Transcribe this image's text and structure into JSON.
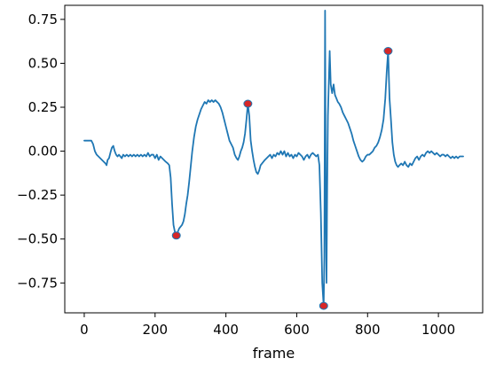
{
  "chart_data": {
    "type": "line",
    "title": "",
    "xlabel": "frame",
    "ylabel": "",
    "xlim": [
      -55,
      1125
    ],
    "ylim": [
      -0.92,
      0.83
    ],
    "x_ticks": [
      0,
      200,
      400,
      600,
      800,
      1000
    ],
    "x_tick_labels": [
      "0",
      "200",
      "400",
      "600",
      "800",
      "1000"
    ],
    "y_ticks": [
      0.75,
      0.5,
      0.25,
      0.0,
      -0.25,
      -0.5,
      -0.75
    ],
    "y_tick_labels": [
      "0.75",
      "0.50",
      "0.25",
      "0.00",
      "−0.25",
      "−0.50",
      "−0.75"
    ],
    "grid": false,
    "legend": "none",
    "series": [
      {
        "color": "#1f77b4",
        "points": [
          [
            0,
            0.06
          ],
          [
            10,
            0.06
          ],
          [
            20,
            0.06
          ],
          [
            25,
            0.04
          ],
          [
            30,
            0.0
          ],
          [
            35,
            -0.02
          ],
          [
            40,
            -0.03
          ],
          [
            45,
            -0.04
          ],
          [
            50,
            -0.05
          ],
          [
            55,
            -0.06
          ],
          [
            60,
            -0.07
          ],
          [
            63,
            -0.08
          ],
          [
            66,
            -0.05
          ],
          [
            70,
            -0.04
          ],
          [
            75,
            0.0
          ],
          [
            78,
            0.02
          ],
          [
            82,
            0.03
          ],
          [
            86,
            0.0
          ],
          [
            90,
            -0.02
          ],
          [
            94,
            -0.03
          ],
          [
            98,
            -0.02
          ],
          [
            102,
            -0.03
          ],
          [
            106,
            -0.04
          ],
          [
            110,
            -0.02
          ],
          [
            115,
            -0.03
          ],
          [
            120,
            -0.02
          ],
          [
            125,
            -0.03
          ],
          [
            130,
            -0.02
          ],
          [
            135,
            -0.03
          ],
          [
            140,
            -0.02
          ],
          [
            145,
            -0.03
          ],
          [
            150,
            -0.02
          ],
          [
            155,
            -0.03
          ],
          [
            160,
            -0.02
          ],
          [
            165,
            -0.03
          ],
          [
            170,
            -0.02
          ],
          [
            175,
            -0.03
          ],
          [
            180,
            -0.01
          ],
          [
            185,
            -0.03
          ],
          [
            190,
            -0.02
          ],
          [
            195,
            -0.02
          ],
          [
            200,
            -0.04
          ],
          [
            205,
            -0.02
          ],
          [
            210,
            -0.05
          ],
          [
            215,
            -0.03
          ],
          [
            220,
            -0.04
          ],
          [
            225,
            -0.05
          ],
          [
            230,
            -0.06
          ],
          [
            236,
            -0.07
          ],
          [
            240,
            -0.08
          ],
          [
            244,
            -0.15
          ],
          [
            248,
            -0.3
          ],
          [
            252,
            -0.42
          ],
          [
            256,
            -0.46
          ],
          [
            260,
            -0.48
          ],
          [
            264,
            -0.46
          ],
          [
            268,
            -0.44
          ],
          [
            272,
            -0.43
          ],
          [
            276,
            -0.42
          ],
          [
            280,
            -0.4
          ],
          [
            284,
            -0.36
          ],
          [
            288,
            -0.3
          ],
          [
            292,
            -0.25
          ],
          [
            296,
            -0.18
          ],
          [
            300,
            -0.1
          ],
          [
            305,
            0.0
          ],
          [
            310,
            0.08
          ],
          [
            315,
            0.14
          ],
          [
            320,
            0.18
          ],
          [
            325,
            0.21
          ],
          [
            330,
            0.24
          ],
          [
            335,
            0.26
          ],
          [
            340,
            0.28
          ],
          [
            345,
            0.27
          ],
          [
            350,
            0.29
          ],
          [
            355,
            0.28
          ],
          [
            360,
            0.29
          ],
          [
            365,
            0.28
          ],
          [
            370,
            0.29
          ],
          [
            375,
            0.28
          ],
          [
            380,
            0.27
          ],
          [
            385,
            0.25
          ],
          [
            390,
            0.22
          ],
          [
            395,
            0.18
          ],
          [
            400,
            0.14
          ],
          [
            405,
            0.1
          ],
          [
            410,
            0.06
          ],
          [
            415,
            0.04
          ],
          [
            420,
            0.02
          ],
          [
            425,
            -0.02
          ],
          [
            430,
            -0.04
          ],
          [
            434,
            -0.05
          ],
          [
            438,
            -0.03
          ],
          [
            442,
            0.0
          ],
          [
            446,
            0.02
          ],
          [
            450,
            0.05
          ],
          [
            454,
            0.1
          ],
          [
            458,
            0.18
          ],
          [
            462,
            0.27
          ],
          [
            466,
            0.2
          ],
          [
            470,
            0.06
          ],
          [
            474,
            0.0
          ],
          [
            478,
            -0.05
          ],
          [
            482,
            -0.09
          ],
          [
            486,
            -0.12
          ],
          [
            490,
            -0.13
          ],
          [
            494,
            -0.11
          ],
          [
            498,
            -0.08
          ],
          [
            502,
            -0.07
          ],
          [
            506,
            -0.06
          ],
          [
            510,
            -0.05
          ],
          [
            515,
            -0.04
          ],
          [
            520,
            -0.03
          ],
          [
            525,
            -0.02
          ],
          [
            530,
            -0.04
          ],
          [
            535,
            -0.02
          ],
          [
            540,
            -0.03
          ],
          [
            545,
            -0.01
          ],
          [
            550,
            -0.02
          ],
          [
            555,
            0.0
          ],
          [
            560,
            -0.02
          ],
          [
            565,
            0.0
          ],
          [
            570,
            -0.03
          ],
          [
            575,
            -0.01
          ],
          [
            580,
            -0.03
          ],
          [
            585,
            -0.02
          ],
          [
            590,
            -0.04
          ],
          [
            595,
            -0.02
          ],
          [
            600,
            -0.03
          ],
          [
            605,
            -0.01
          ],
          [
            610,
            -0.02
          ],
          [
            615,
            -0.03
          ],
          [
            620,
            -0.05
          ],
          [
            625,
            -0.03
          ],
          [
            630,
            -0.02
          ],
          [
            635,
            -0.04
          ],
          [
            640,
            -0.02
          ],
          [
            645,
            -0.01
          ],
          [
            650,
            -0.02
          ],
          [
            655,
            -0.03
          ],
          [
            660,
            -0.02
          ],
          [
            664,
            -0.08
          ],
          [
            668,
            -0.35
          ],
          [
            672,
            -0.75
          ],
          [
            676,
            -0.88
          ],
          [
            678,
            -0.6
          ],
          [
            680,
            0.8
          ],
          [
            682,
            -0.3
          ],
          [
            684,
            -0.75
          ],
          [
            686,
            -0.2
          ],
          [
            688,
            0.2
          ],
          [
            690,
            0.35
          ],
          [
            693,
            0.57
          ],
          [
            696,
            0.38
          ],
          [
            700,
            0.33
          ],
          [
            704,
            0.38
          ],
          [
            708,
            0.32
          ],
          [
            712,
            0.3
          ],
          [
            716,
            0.28
          ],
          [
            720,
            0.27
          ],
          [
            725,
            0.25
          ],
          [
            730,
            0.22
          ],
          [
            735,
            0.2
          ],
          [
            740,
            0.18
          ],
          [
            745,
            0.16
          ],
          [
            750,
            0.13
          ],
          [
            755,
            0.1
          ],
          [
            760,
            0.06
          ],
          [
            765,
            0.03
          ],
          [
            770,
            0.0
          ],
          [
            775,
            -0.03
          ],
          [
            780,
            -0.05
          ],
          [
            785,
            -0.06
          ],
          [
            790,
            -0.05
          ],
          [
            795,
            -0.03
          ],
          [
            800,
            -0.02
          ],
          [
            805,
            -0.02
          ],
          [
            810,
            -0.01
          ],
          [
            815,
            0.0
          ],
          [
            820,
            0.02
          ],
          [
            825,
            0.03
          ],
          [
            830,
            0.05
          ],
          [
            835,
            0.08
          ],
          [
            840,
            0.12
          ],
          [
            845,
            0.18
          ],
          [
            850,
            0.3
          ],
          [
            854,
            0.45
          ],
          [
            858,
            0.57
          ],
          [
            862,
            0.3
          ],
          [
            866,
            0.18
          ],
          [
            870,
            0.05
          ],
          [
            874,
            -0.02
          ],
          [
            878,
            -0.06
          ],
          [
            882,
            -0.08
          ],
          [
            886,
            -0.09
          ],
          [
            890,
            -0.08
          ],
          [
            895,
            -0.07
          ],
          [
            900,
            -0.08
          ],
          [
            905,
            -0.06
          ],
          [
            910,
            -0.08
          ],
          [
            915,
            -0.09
          ],
          [
            920,
            -0.07
          ],
          [
            925,
            -0.08
          ],
          [
            930,
            -0.06
          ],
          [
            935,
            -0.04
          ],
          [
            940,
            -0.03
          ],
          [
            945,
            -0.05
          ],
          [
            950,
            -0.03
          ],
          [
            955,
            -0.02
          ],
          [
            960,
            -0.03
          ],
          [
            965,
            -0.01
          ],
          [
            970,
            0.0
          ],
          [
            975,
            -0.01
          ],
          [
            980,
            0.0
          ],
          [
            985,
            -0.01
          ],
          [
            990,
            -0.02
          ],
          [
            995,
            -0.01
          ],
          [
            1000,
            -0.02
          ],
          [
            1005,
            -0.03
          ],
          [
            1010,
            -0.02
          ],
          [
            1015,
            -0.02
          ],
          [
            1020,
            -0.03
          ],
          [
            1025,
            -0.02
          ],
          [
            1030,
            -0.03
          ],
          [
            1035,
            -0.04
          ],
          [
            1040,
            -0.03
          ],
          [
            1045,
            -0.04
          ],
          [
            1050,
            -0.03
          ],
          [
            1055,
            -0.04
          ],
          [
            1060,
            -0.03
          ],
          [
            1065,
            -0.03
          ],
          [
            1070,
            -0.03
          ]
        ]
      }
    ],
    "markers": {
      "fill": "#d62728",
      "edge": "#1f77b4",
      "points": [
        [
          260,
          -0.48
        ],
        [
          462,
          0.27
        ],
        [
          676,
          -0.88
        ],
        [
          858,
          0.57
        ]
      ]
    }
  }
}
